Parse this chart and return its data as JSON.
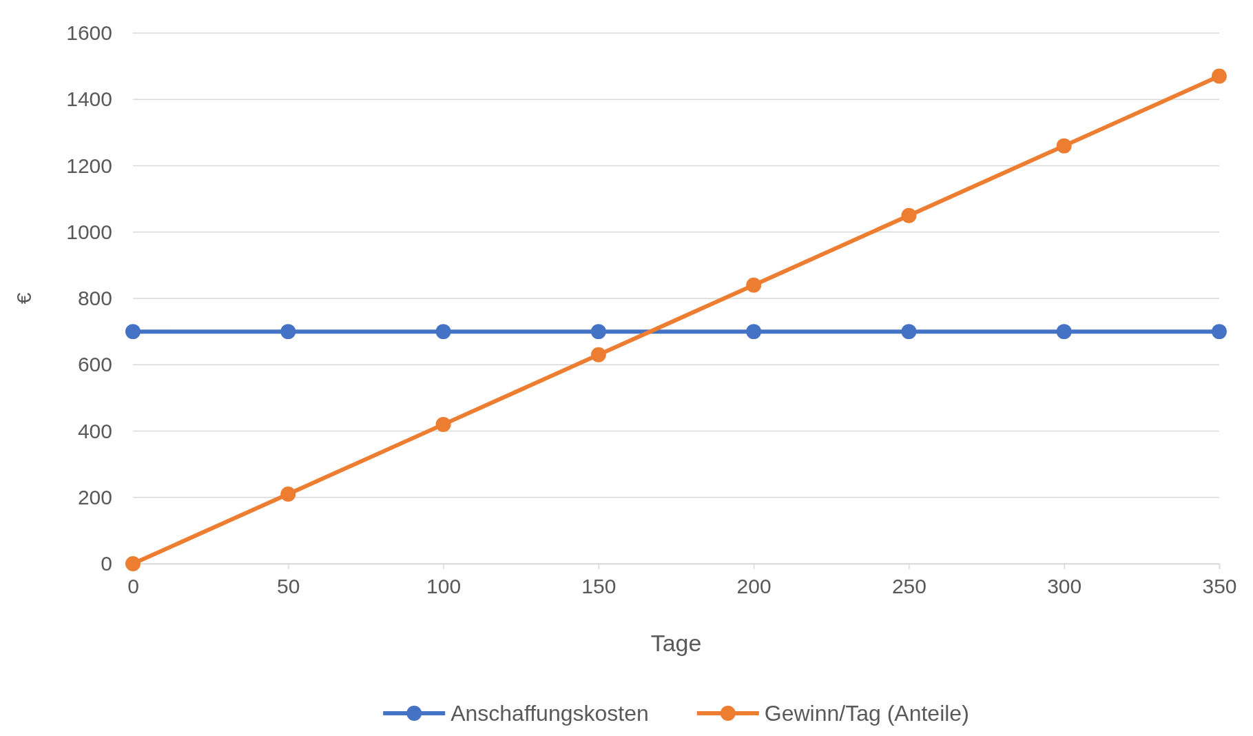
{
  "chart_data": {
    "type": "line",
    "xlabel": "Tage",
    "ylabel": "€",
    "x": [
      0,
      50,
      100,
      150,
      200,
      250,
      300,
      350
    ],
    "series": [
      {
        "name": "Anschaffungskosten",
        "color": "#4472c4",
        "values": [
          700,
          700,
          700,
          700,
          700,
          700,
          700,
          700
        ]
      },
      {
        "name": "Gewinn/Tag (Anteile)",
        "color": "#ed7d31",
        "values": [
          0,
          210,
          420,
          630,
          840,
          1050,
          1260,
          1470
        ]
      }
    ],
    "xlim": [
      0,
      350
    ],
    "xticks": [
      0,
      50,
      100,
      150,
      200,
      250,
      300,
      350
    ],
    "ylim": [
      0,
      1600
    ],
    "yticks": [
      0,
      200,
      400,
      600,
      800,
      1000,
      1200,
      1400,
      1600
    ],
    "grid": "y",
    "legend": "bottom",
    "marker": "circle",
    "line_style": "solid"
  }
}
